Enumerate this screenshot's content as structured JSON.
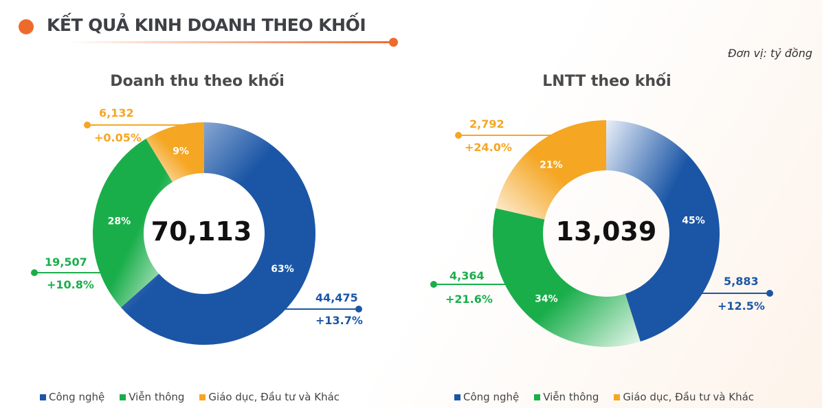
{
  "header": {
    "title": "KẾT QUẢ KINH DOANH THEO KHỐI",
    "unit": "Đơn vị: tỷ đồng"
  },
  "colors": {
    "blue": "#1b56a6",
    "green": "#1aae4b",
    "orange": "#f5a623",
    "accent": "#ee6a2b"
  },
  "legend": [
    "Công nghệ",
    "Viễn thông",
    "Giáo dục, Đầu tư và Khác"
  ],
  "chart_data": [
    {
      "type": "pie",
      "title": "Doanh thu theo khối",
      "total": "70,113",
      "categories": [
        "Công nghệ",
        "Viễn thông",
        "Giáo dục, Đầu tư và Khác"
      ],
      "values": [
        44475,
        19507,
        6132
      ],
      "value_labels": [
        "44,475",
        "19,507",
        "6,132"
      ],
      "percent_labels": [
        "63%",
        "28%",
        "9%"
      ],
      "growth_labels": [
        "+13.7%",
        "+10.8%",
        "+0.05%"
      ]
    },
    {
      "type": "pie",
      "title": "LNTT theo khối",
      "total": "13,039",
      "categories": [
        "Công nghệ",
        "Viễn thông",
        "Giáo dục, Đầu tư và Khác"
      ],
      "values": [
        5883,
        4364,
        2792
      ],
      "value_labels": [
        "5,883",
        "4,364",
        "2,792"
      ],
      "percent_labels": [
        "45%",
        "34%",
        "21%"
      ],
      "growth_labels": [
        "+12.5%",
        "+21.6%",
        "+24.0%"
      ]
    }
  ]
}
